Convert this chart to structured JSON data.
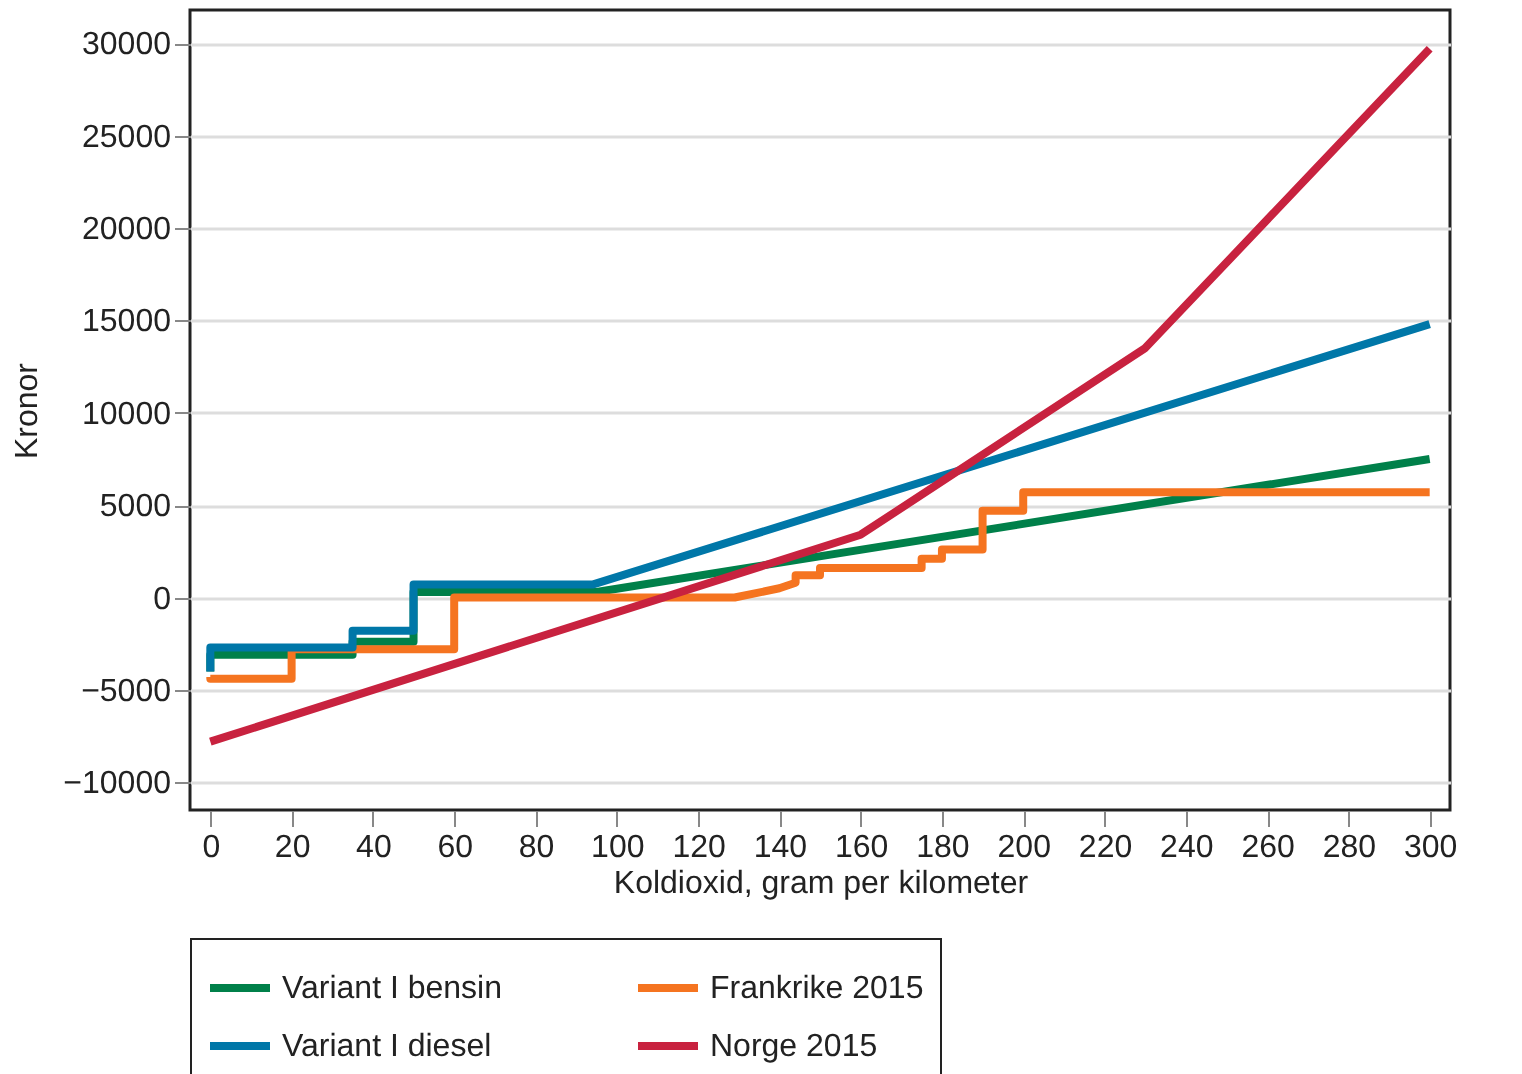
{
  "chart_data": {
    "type": "line",
    "xlabel": "Koldioxid, gram per kilometer",
    "ylabel": "Kronor",
    "xlim": [
      -5,
      305
    ],
    "xticks": [
      0,
      20,
      40,
      60,
      80,
      100,
      120,
      140,
      160,
      180,
      200,
      220,
      240,
      260,
      280,
      300
    ],
    "ylim": [
      -11500,
      31800
    ],
    "yticks": [
      -10000,
      -5000,
      0,
      5000,
      10000,
      15000,
      20000,
      25000,
      30000
    ],
    "grid": "y",
    "legend": "bottom",
    "series": [
      {
        "name": "Variant I bensin",
        "color": "#00804a",
        "x": [
          0,
          0,
          35,
          35,
          50,
          50,
          95,
          300
        ],
        "values": [
          -4000,
          -3100,
          -3100,
          -2400,
          -2400,
          300,
          300,
          7500
        ]
      },
      {
        "name": "Frankrike 2015",
        "color": "#f57420",
        "x": [
          0,
          0,
          20,
          20,
          60,
          60,
          129,
          140,
          144,
          144,
          150,
          150,
          175,
          175,
          180,
          180,
          190,
          190,
          200,
          200,
          300
        ],
        "values": [
          -4300,
          -4400,
          -4400,
          -2800,
          -2800,
          0,
          0,
          500,
          800,
          1200,
          1200,
          1600,
          1600,
          2100,
          2100,
          2600,
          2600,
          4700,
          4700,
          5700,
          5700
        ]
      },
      {
        "name": "Variant I diesel",
        "color": "#0077a8",
        "x": [
          0,
          0,
          35,
          35,
          50,
          50,
          94,
          300
        ],
        "values": [
          -4000,
          -2700,
          -2700,
          -1800,
          -1800,
          700,
          700,
          14800
        ]
      },
      {
        "name": "Norge 2015",
        "color": "#c8223f",
        "x": [
          0,
          160,
          230,
          300
        ],
        "values": [
          -7800,
          3400,
          13500,
          29700
        ]
      }
    ]
  }
}
